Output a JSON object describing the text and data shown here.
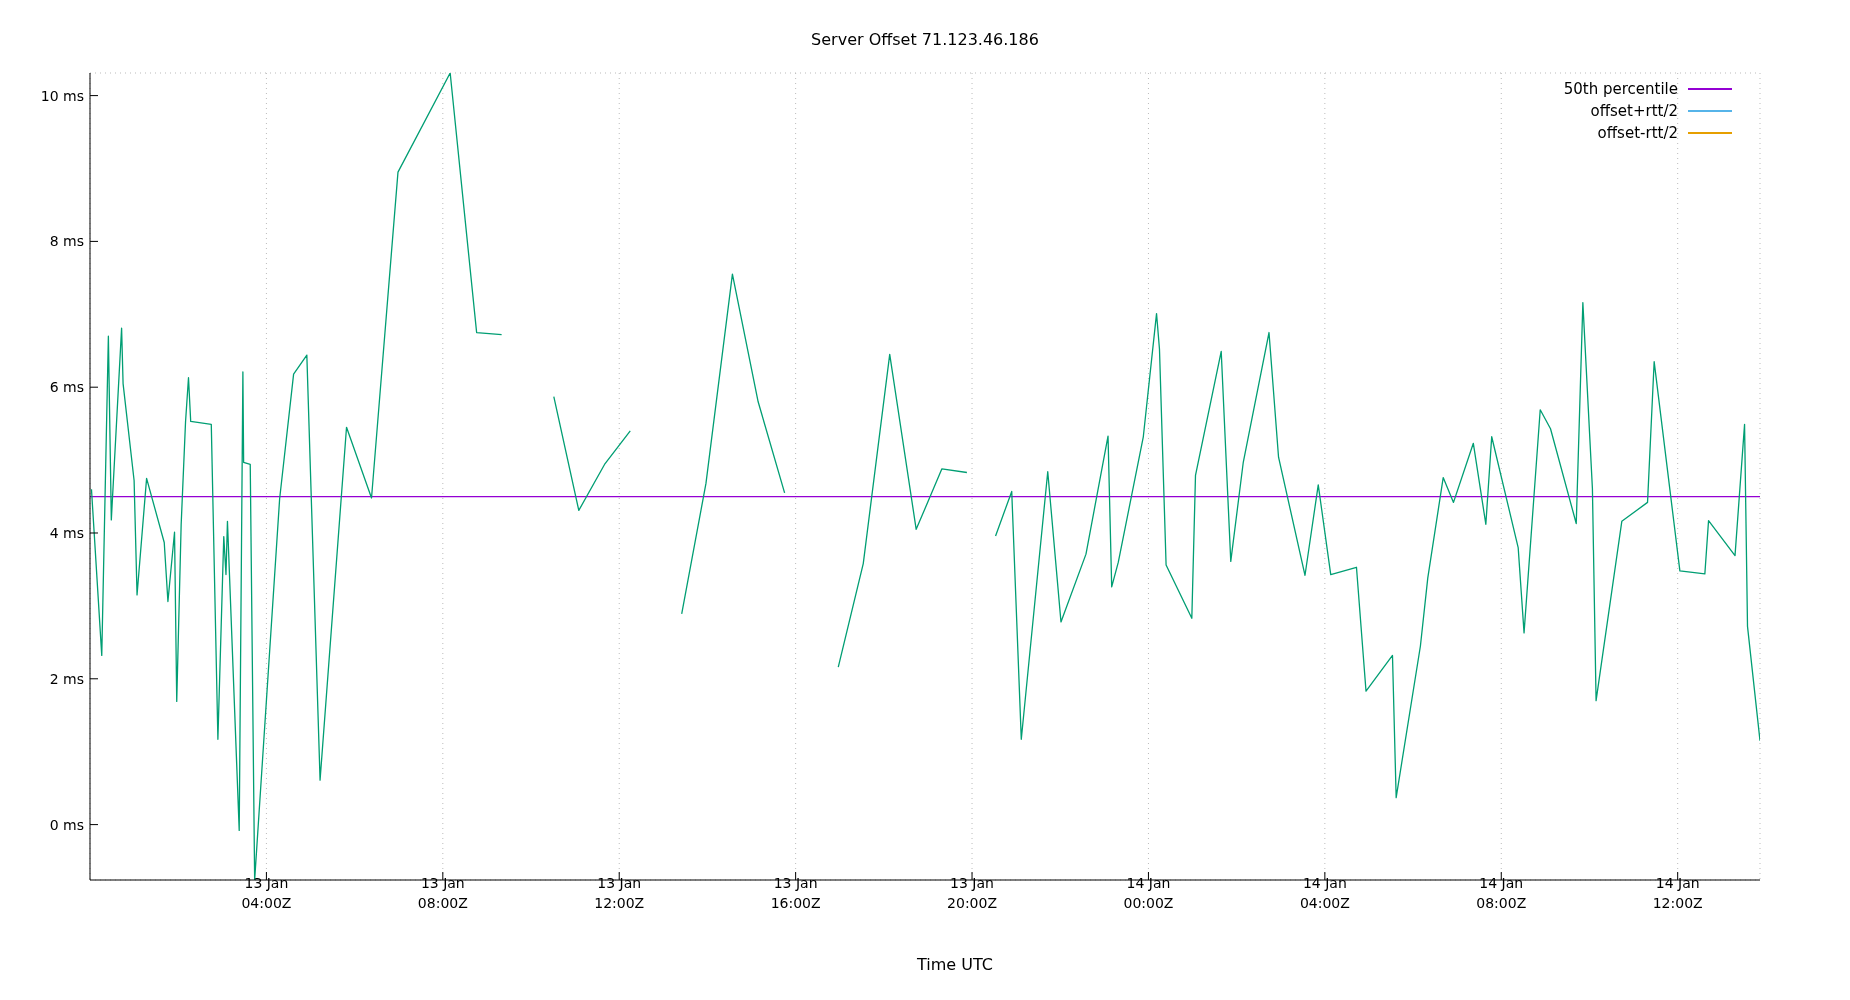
{
  "chart_data": {
    "type": "line",
    "title": "Server Offset 71.123.46.186",
    "xlabel": "Time UTC",
    "xlim": [
      "--01-13T00:00",
      "--01-14T13:52"
    ],
    "ylim": [
      -0.76,
      10.31
    ],
    "xticks": [
      {
        "value": "--01-13T04:00",
        "label": "13 Jan\n04:00Z"
      },
      {
        "value": "--01-13T08:00",
        "label": "13 Jan\n08:00Z"
      },
      {
        "value": "--01-13T12:00",
        "label": "13 Jan\n12:00Z"
      },
      {
        "value": "--01-13T16:00",
        "label": "13 Jan\n16:00Z"
      },
      {
        "value": "--01-13T20:00",
        "label": "13 Jan\n20:00Z"
      },
      {
        "value": "--01-14T00:00",
        "label": "14 Jan\n00:00Z"
      },
      {
        "value": "--01-14T04:00",
        "label": "14 Jan\n04:00Z"
      },
      {
        "value": "--01-14T08:00",
        "label": "14 Jan\n08:00Z"
      },
      {
        "value": "--01-14T12:00",
        "label": "14 Jan\n12:00Z"
      }
    ],
    "yticks": [
      {
        "value": 0,
        "label": "0 ms"
      },
      {
        "value": 2,
        "label": "2 ms"
      },
      {
        "value": 4,
        "label": "4 ms"
      },
      {
        "value": 6,
        "label": "6 ms"
      },
      {
        "value": 8,
        "label": "8 ms"
      },
      {
        "value": 10,
        "label": "10 ms"
      }
    ],
    "grid": true,
    "legend": "top right",
    "marker": "none",
    "line_style": "solid",
    "series": [
      {
        "name": "50th percentile",
        "color": "#9400d3",
        "x": [
          "--01-13T00:00",
          "--01-14T13:52"
        ],
        "values": [
          4.5,
          4.5
        ]
      },
      {
        "color": "#009e73",
        "x": [
          "--01-13T00:02",
          "--01-13T00:16",
          "--01-13T00:25",
          "--01-13T00:29",
          "--01-13T00:43",
          "--01-13T00:45",
          "--01-13T01:00",
          "--01-13T01:04",
          "--01-13T01:17",
          "--01-13T01:41",
          "--01-13T01:46",
          "--01-13T01:55",
          "--01-13T01:58",
          "--01-13T02:04",
          "--01-13T02:10",
          "--01-13T02:14",
          "--01-13T02:17",
          "--01-13T02:45",
          "--01-13T02:54",
          "--01-13T03:02",
          "--01-13T03:05",
          "--01-13T03:07",
          "--01-13T03:23",
          "--01-13T03:28",
          "--01-13T03:29",
          "--01-13T03:38",
          "--01-13T03:44",
          "--01-13T04:18",
          "--01-13T04:37",
          "--01-13T04:55",
          "--01-13T05:13",
          "--01-13T05:49",
          "--01-13T06:23",
          "--01-13T06:59",
          "--01-13T08:10",
          "--01-13T08:46",
          "--01-13T09:20",
          "--01-13T09:54",
          "--01-13T10:31",
          "--01-13T11:05",
          "--01-13T11:40",
          "--01-13T12:15",
          "--01-13T12:48",
          "--01-13T13:25",
          "--01-13T13:58",
          "--01-13T14:34",
          "--01-13T15:09",
          "--01-13T15:45",
          "--01-13T16:24",
          "--01-13T16:58",
          "--01-13T17:32",
          "--01-13T18:08",
          "--01-13T18:44",
          "--01-13T19:19",
          "--01-13T19:53",
          "--01-13T20:12",
          "--01-13T20:32",
          "--01-13T20:54",
          "--01-13T21:07",
          "--01-13T21:43",
          "--01-13T22:01",
          "--01-13T22:35",
          "--01-13T23:05",
          "--01-13T23:10",
          "--01-13T23:19",
          "--01-13T23:53",
          "--01-14T00:11",
          "--01-14T00:15",
          "--01-14T00:24",
          "--01-14T00:59",
          "--01-14T01:04",
          "--01-14T01:39",
          "--01-14T01:52",
          "--01-14T02:09",
          "--01-14T02:44",
          "--01-14T02:57",
          "--01-14T03:33",
          "--01-14T03:51",
          "--01-14T04:08",
          "--01-14T04:43",
          "--01-14T04:56",
          "--01-14T05:32",
          "--01-14T05:37",
          "--01-14T06:10",
          "--01-14T06:20",
          "--01-14T06:41",
          "--01-14T06:55",
          "--01-14T07:22",
          "--01-14T07:39",
          "--01-14T07:47",
          "--01-14T08:23",
          "--01-14T08:31",
          "--01-14T08:53",
          "--01-14T09:07",
          "--01-14T09:42",
          "--01-14T09:51",
          "--01-14T10:04",
          "--01-14T10:09",
          "--01-14T10:44",
          "--01-14T11:19",
          "--01-14T11:28",
          "--01-14T12:03",
          "--01-14T12:37",
          "--01-14T12:42",
          "--01-14T13:18",
          "--01-14T13:31",
          "--01-14T13:35",
          "--01-14T13:52"
        ],
        "values": [
          4.6,
          2.32,
          6.7,
          4.18,
          6.81,
          6.05,
          4.72,
          3.15,
          4.75,
          3.87,
          3.06,
          4.01,
          1.69,
          4.11,
          5.53,
          6.13,
          5.53,
          5.49,
          1.17,
          3.95,
          3.43,
          4.16,
          -0.08,
          6.21,
          4.97,
          4.94,
          -0.76,
          4.47,
          6.18,
          6.44,
          0.61,
          5.45,
          4.48,
          8.95,
          10.31,
          6.75,
          6.72,
          null,
          5.87,
          4.31,
          4.94,
          5.4,
          null,
          2.89,
          4.68,
          7.55,
          5.8,
          4.55,
          null,
          2.16,
          3.58,
          6.45,
          4.05,
          4.88,
          4.83,
          null,
          3.96,
          4.57,
          1.17,
          4.84,
          2.78,
          3.71,
          5.33,
          3.26,
          3.6,
          5.32,
          7.01,
          6.52,
          3.56,
          2.83,
          4.79,
          6.49,
          3.61,
          4.97,
          6.75,
          5.04,
          3.42,
          4.66,
          3.43,
          3.53,
          1.83,
          2.32,
          0.37,
          2.45,
          3.38,
          4.76,
          4.42,
          5.23,
          4.12,
          5.32,
          3.8,
          2.63,
          5.69,
          5.43,
          4.13,
          7.16,
          4.61,
          1.7,
          4.16,
          4.42,
          6.35,
          3.48,
          3.44,
          4.17,
          3.69,
          5.49,
          2.72,
          1.15
        ]
      },
      {
        "name": "offset+rtt/2",
        "color": "#56b4e9"
      },
      {
        "name": "offset-rtt/2",
        "color": "#e69f00"
      }
    ]
  }
}
